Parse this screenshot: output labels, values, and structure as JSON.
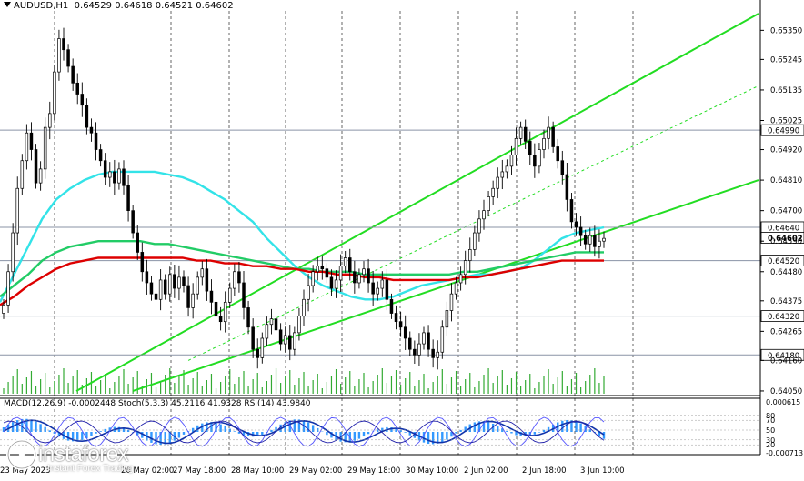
{
  "header": {
    "symbol": "AUDUSD,H1",
    "ohlc": "0.64529 0.64618 0.64521 0.64602"
  },
  "indicator_header": "MACD(12,26,9) -0.0002448 Stoch(5,3,3) 45.2116 41.9328 RSI(14) 43.9840",
  "logo": {
    "brand": "instaforex",
    "tagline": "Instant Forex Trading"
  },
  "colors": {
    "bull": "#000000",
    "bear": "#000000",
    "ma_fast": "#33e3e8",
    "ma_mid": "#22cc66",
    "ma_slow": "#dd0000",
    "channel": "#22dd22",
    "volume": "#33aa33",
    "hline": "#8a93a6",
    "macd_hist": "#3399ff",
    "macd_signal": "#1133aa",
    "stoch": "#5555ff",
    "rsi": "#2222aa"
  },
  "chart_data": {
    "type": "candlestick",
    "symbol": "AUDUSD",
    "timeframe": "H1",
    "ylim": [
      0.6404,
      0.6542
    ],
    "y_ticks": [
      "0.65350",
      "0.65245",
      "0.65135",
      "0.65025",
      "0.64920",
      "0.64810",
      "0.64700",
      "0.64590",
      "0.64480",
      "0.64375",
      "0.64265",
      "0.64160",
      "0.64050"
    ],
    "x_labels": [
      "23 May 2023",
      "26 May 02:00",
      "27 May 18:00",
      "28 May 10:00",
      "29 May 02:00",
      "29 May 18:00",
      "30 May 10:00",
      "2 Jun 02:00",
      "2 Jun 18:00",
      "3 Jun 10:00"
    ],
    "horizontal_levels": [
      {
        "value": 0.6499,
        "label": "0.64990"
      },
      {
        "value": 0.6464,
        "label": "0.64640"
      },
      {
        "value": 0.64602,
        "label": "0.64602",
        "current": true
      },
      {
        "value": 0.6452,
        "label": "0.64520"
      },
      {
        "value": 0.6432,
        "label": "0.64320"
      },
      {
        "value": 0.6418,
        "label": "0.64180"
      }
    ],
    "closes": [
      0.6436,
      0.6448,
      0.6462,
      0.6478,
      0.6488,
      0.6498,
      0.6492,
      0.648,
      0.6485,
      0.65,
      0.6505,
      0.652,
      0.6532,
      0.6528,
      0.6522,
      0.6516,
      0.6512,
      0.6508,
      0.65,
      0.6498,
      0.6492,
      0.6488,
      0.6482,
      0.6484,
      0.648,
      0.6485,
      0.6479,
      0.647,
      0.6462,
      0.6455,
      0.6448,
      0.6444,
      0.644,
      0.6438,
      0.6445,
      0.644,
      0.6447,
      0.6442,
      0.6446,
      0.6443,
      0.6435,
      0.644,
      0.6446,
      0.6449,
      0.6441,
      0.6437,
      0.6432,
      0.643,
      0.6437,
      0.6442,
      0.6448,
      0.6444,
      0.6435,
      0.6428,
      0.642,
      0.6417,
      0.6424,
      0.6429,
      0.6431,
      0.6427,
      0.6422,
      0.6425,
      0.642,
      0.6426,
      0.6432,
      0.6438,
      0.6443,
      0.6448,
      0.645,
      0.6449,
      0.6446,
      0.6442,
      0.6445,
      0.645,
      0.6453,
      0.6448,
      0.6444,
      0.6447,
      0.6449,
      0.6444,
      0.644,
      0.6442,
      0.6445,
      0.6438,
      0.6433,
      0.643,
      0.6428,
      0.6424,
      0.642,
      0.6418,
      0.6422,
      0.6426,
      0.642,
      0.6417,
      0.6419,
      0.6428,
      0.6434,
      0.644,
      0.6444,
      0.6447,
      0.6452,
      0.6456,
      0.6462,
      0.6467,
      0.647,
      0.6475,
      0.6478,
      0.6482,
      0.6484,
      0.6486,
      0.649,
      0.6496,
      0.65,
      0.6495,
      0.649,
      0.6486,
      0.6492,
      0.6496,
      0.65,
      0.6493,
      0.6488,
      0.6483,
      0.6474,
      0.6466,
      0.6464,
      0.6461,
      0.6458,
      0.6461,
      0.6457,
      0.6459,
      0.646
    ],
    "series": [
      {
        "name": "MA fast",
        "values": [
          0.6437,
          0.6447,
          0.6457,
          0.6467,
          0.6474,
          0.6478,
          0.6481,
          0.6483,
          0.6484,
          0.6484,
          0.6484,
          0.6484,
          0.6483,
          0.6482,
          0.648,
          0.6477,
          0.6474,
          0.647,
          0.6466,
          0.646,
          0.6455,
          0.645,
          0.6446,
          0.6443,
          0.6441,
          0.6439,
          0.6438,
          0.6438,
          0.6439,
          0.6441,
          0.6443,
          0.6444,
          0.6445,
          0.6446,
          0.6447,
          0.6447,
          0.6448,
          0.6449,
          0.6452,
          0.6456,
          0.646,
          0.6462,
          0.6463,
          0.6464
        ]
      },
      {
        "name": "MA mid",
        "values": [
          0.6439,
          0.6443,
          0.6447,
          0.6452,
          0.6455,
          0.6457,
          0.6458,
          0.6459,
          0.6459,
          0.6459,
          0.6459,
          0.6458,
          0.6458,
          0.6457,
          0.6456,
          0.6455,
          0.6454,
          0.6453,
          0.6452,
          0.6451,
          0.645,
          0.6449,
          0.6449,
          0.6448,
          0.6448,
          0.6448,
          0.6447,
          0.6447,
          0.6447,
          0.6447,
          0.6447,
          0.6447,
          0.6447,
          0.6448,
          0.6448,
          0.6449,
          0.645,
          0.6451,
          0.6452,
          0.6453,
          0.6454,
          0.6455,
          0.6455,
          0.6455
        ]
      },
      {
        "name": "MA slow",
        "values": [
          0.6436,
          0.6439,
          0.6443,
          0.6446,
          0.6449,
          0.6451,
          0.6452,
          0.6453,
          0.6453,
          0.6453,
          0.6453,
          0.6453,
          0.6453,
          0.6453,
          0.6452,
          0.6452,
          0.6451,
          0.6451,
          0.645,
          0.645,
          0.6449,
          0.6449,
          0.6448,
          0.6448,
          0.6447,
          0.6447,
          0.6446,
          0.6446,
          0.6445,
          0.6445,
          0.6445,
          0.6445,
          0.6445,
          0.6446,
          0.6446,
          0.6447,
          0.6448,
          0.6449,
          0.645,
          0.6451,
          0.6452,
          0.6452,
          0.6452,
          0.6452
        ]
      }
    ],
    "lower_panel": {
      "indicators": [
        "MACD(12,26,9)",
        "Stoch(5,3,3)",
        "RSI(14)"
      ],
      "right_labels": [
        "0.000615",
        "80",
        "70",
        "50",
        "30",
        "20",
        "-0.000713"
      ]
    }
  }
}
